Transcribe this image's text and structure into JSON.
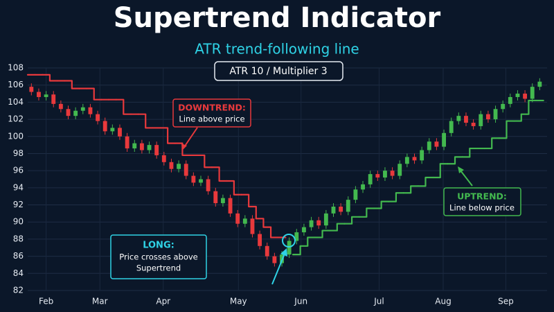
{
  "chart_data": {
    "type": "candlestick",
    "title": "Supertrend Indicator",
    "subtitle": "ATR trend-following line",
    "badge": "ATR 10 / Multiplier 3",
    "up_color": "#43b94f",
    "down_color": "#e8393c",
    "grid": true,
    "xlim": [
      -0.5,
      70
    ],
    "xticks": [
      {
        "value": 2,
        "label": "Feb"
      },
      {
        "value": 9.3,
        "label": "Mar"
      },
      {
        "value": 17.9,
        "label": "Apr"
      },
      {
        "value": 28.1,
        "label": "May"
      },
      {
        "value": 36.6,
        "label": "Jun"
      },
      {
        "value": 47.2,
        "label": "Jul"
      },
      {
        "value": 55.9,
        "label": "Aug"
      },
      {
        "value": 64.4,
        "label": "Sep"
      }
    ],
    "ylim": [
      82,
      108
    ],
    "yticks": [
      82,
      84,
      86,
      88,
      90,
      92,
      94,
      96,
      98,
      100,
      102,
      104,
      106,
      108
    ],
    "x": [
      0,
      1,
      2,
      3,
      4,
      5,
      6,
      7,
      8,
      9,
      10,
      11,
      12,
      13,
      14,
      15,
      16,
      17,
      18,
      19,
      20,
      21,
      22,
      23,
      24,
      25,
      26,
      27,
      28,
      29,
      30,
      31,
      32,
      33,
      34,
      35,
      36,
      37,
      38,
      39,
      40,
      41,
      42,
      43,
      44,
      45,
      46,
      47,
      48,
      49,
      50,
      51,
      52,
      53,
      54,
      55,
      56,
      57,
      58,
      59,
      60,
      61,
      62,
      63,
      64,
      65,
      66,
      67,
      68,
      69
    ],
    "open": [
      105.8,
      105.2,
      104.6,
      104.9,
      103.8,
      103.2,
      102.4,
      103.0,
      103.4,
      102.6,
      101.8,
      100.6,
      101.0,
      100.0,
      98.6,
      99.2,
      98.4,
      99.0,
      97.8,
      97.0,
      96.2,
      96.8,
      95.4,
      94.6,
      95.0,
      93.6,
      92.2,
      92.8,
      91.0,
      89.8,
      90.4,
      88.6,
      87.2,
      86.0,
      85.2,
      86.2,
      87.8,
      88.8,
      89.4,
      90.2,
      89.6,
      91.0,
      91.8,
      91.2,
      92.6,
      93.8,
      94.4,
      95.6,
      95.2,
      96.0,
      95.4,
      96.8,
      97.6,
      97.2,
      98.4,
      99.4,
      98.8,
      100.4,
      101.8,
      102.4,
      101.6,
      101.2,
      102.6,
      102.0,
      103.2,
      103.8,
      104.6,
      105.0,
      104.4,
      105.8
    ],
    "high": [
      106.2,
      105.6,
      105.3,
      105.3,
      104.2,
      103.6,
      103.4,
      103.8,
      103.8,
      103.0,
      102.2,
      101.4,
      101.4,
      100.4,
      99.6,
      99.6,
      99.4,
      99.4,
      98.2,
      97.4,
      97.2,
      97.2,
      95.8,
      95.4,
      95.4,
      94.0,
      93.2,
      93.2,
      91.4,
      90.8,
      90.8,
      89.0,
      87.6,
      86.4,
      86.6,
      88.2,
      89.2,
      89.8,
      90.6,
      90.6,
      91.4,
      92.2,
      92.2,
      93.0,
      94.2,
      94.8,
      96.0,
      96.0,
      96.4,
      96.4,
      97.2,
      98.0,
      98.0,
      98.8,
      99.8,
      99.8,
      100.8,
      102.2,
      102.8,
      102.8,
      102.0,
      103.0,
      103.0,
      103.6,
      104.2,
      105.0,
      105.4,
      105.4,
      106.2,
      106.8
    ],
    "low": [
      104.8,
      104.2,
      104.2,
      103.4,
      102.8,
      102.0,
      102.0,
      102.6,
      102.2,
      101.4,
      100.2,
      100.2,
      99.6,
      98.2,
      98.2,
      98.0,
      98.0,
      97.4,
      96.6,
      95.8,
      95.8,
      95.0,
      94.2,
      94.2,
      93.2,
      91.8,
      91.8,
      90.6,
      89.4,
      89.4,
      88.2,
      86.8,
      85.6,
      84.8,
      84.8,
      85.8,
      87.4,
      88.4,
      89.0,
      89.2,
      89.2,
      90.6,
      90.8,
      90.8,
      92.2,
      93.4,
      94.0,
      94.8,
      94.8,
      95.0,
      95.0,
      96.4,
      96.8,
      96.8,
      98.0,
      98.4,
      98.4,
      100.0,
      101.4,
      101.2,
      100.8,
      100.8,
      101.6,
      101.6,
      102.8,
      103.4,
      104.2,
      104.0,
      104.0,
      105.4
    ],
    "close": [
      105.2,
      104.6,
      104.9,
      103.8,
      103.2,
      102.4,
      103.0,
      103.4,
      102.6,
      101.8,
      100.6,
      101.0,
      100.0,
      98.6,
      99.2,
      98.4,
      99.0,
      97.8,
      97.0,
      96.2,
      96.8,
      95.4,
      94.6,
      95.0,
      93.6,
      92.2,
      92.8,
      91.0,
      89.8,
      90.4,
      88.6,
      87.2,
      86.0,
      85.2,
      86.2,
      87.8,
      88.8,
      89.4,
      90.2,
      89.6,
      91.0,
      91.8,
      91.2,
      92.6,
      93.8,
      94.4,
      95.6,
      95.2,
      96.0,
      95.4,
      96.8,
      97.6,
      97.2,
      98.4,
      99.4,
      98.8,
      100.4,
      101.8,
      102.4,
      101.6,
      101.2,
      102.6,
      102.0,
      103.2,
      103.8,
      104.6,
      105.0,
      104.4,
      105.8,
      106.4
    ],
    "supertrend": [
      {
        "color": "#e8393c",
        "values": [
          107.2,
          107.2,
          107.2,
          106.5,
          106.5,
          106.5,
          105.6,
          105.6,
          105.6,
          104.3,
          104.3,
          104.3,
          104.3,
          102.6,
          102.6,
          102.6,
          101.0,
          101.0,
          101.0,
          99.2,
          99.2,
          97.8,
          97.8,
          97.8,
          96.4,
          96.4,
          94.8,
          94.8,
          93.2,
          93.2,
          91.8,
          90.4,
          89.4,
          88.2,
          88.2,
          null,
          null,
          null,
          null,
          null,
          null,
          null,
          null,
          null,
          null,
          null,
          null,
          null,
          null,
          null,
          null,
          null,
          null,
          null,
          null,
          null,
          null,
          null,
          null,
          null,
          null,
          null,
          null,
          null,
          null,
          null,
          null,
          null,
          null,
          null
        ]
      },
      {
        "color": "#43b94f",
        "values": [
          null,
          null,
          null,
          null,
          null,
          null,
          null,
          null,
          null,
          null,
          null,
          null,
          null,
          null,
          null,
          null,
          null,
          null,
          null,
          null,
          null,
          null,
          null,
          null,
          null,
          null,
          null,
          null,
          null,
          null,
          null,
          null,
          null,
          null,
          null,
          null,
          86.2,
          87.2,
          88.2,
          88.2,
          89.0,
          89.0,
          89.8,
          89.8,
          90.6,
          90.6,
          91.6,
          91.6,
          92.4,
          92.4,
          93.4,
          93.4,
          94.2,
          94.2,
          95.2,
          95.2,
          96.8,
          96.8,
          97.6,
          97.6,
          98.6,
          98.6,
          98.6,
          99.8,
          99.8,
          101.8,
          101.8,
          102.6,
          104.2,
          104.2
        ]
      }
    ],
    "annotations": {
      "downtrend": {
        "title": "DOWNTREND:",
        "text": "Line above price"
      },
      "long": {
        "title": "LONG:",
        "text": [
          "Price crosses above",
          "Supertrend"
        ]
      },
      "uptrend": {
        "title": "UPTREND:",
        "text": "Line below price"
      }
    }
  }
}
